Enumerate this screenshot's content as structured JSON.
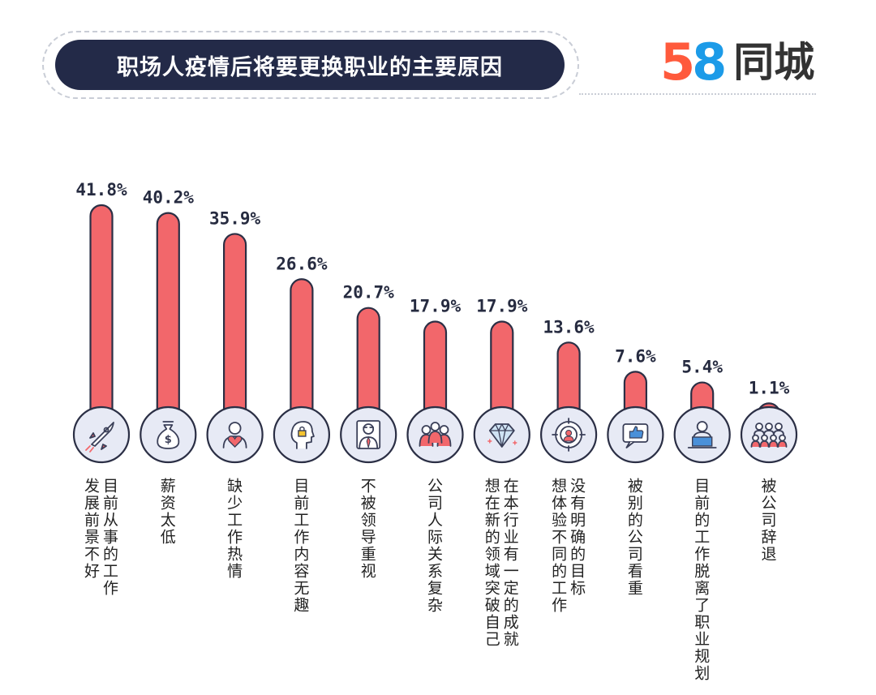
{
  "header": {
    "title": "职场人疫情后将要更换职业的主要原因",
    "logo_number": "58",
    "logo_text": "同城"
  },
  "colors": {
    "bar": "#f2676b",
    "bar_stroke": "#2b2f45",
    "icon_bg": "#e7eaf5",
    "icon_stroke": "#3a3f58",
    "title_bg": "#232a48"
  },
  "chart_data": {
    "type": "bar",
    "title": "职场人疫情后将要更换职业的主要原因",
    "unit": "%",
    "ylim": [
      0,
      45
    ],
    "grid": false,
    "categories": [
      "目前从事的工作发展前景不好",
      "薪资太低",
      "缺少工作热情",
      "目前工作内容无趣",
      "不被领导重视",
      "公司人际关系复杂",
      "想在本行业有一定的成就在新的领域突破自己",
      "没有明确的目标想体验不同的工作",
      "被别的公司看重",
      "目前的工作脱离了职业规划",
      "被公司辞退"
    ],
    "label_columns": [
      [
        "目前从事的工作",
        "发展前景不好"
      ],
      [
        "薪资太低"
      ],
      [
        "缺少工作热情"
      ],
      [
        "目前工作内容无趣"
      ],
      [
        "不被领导重视"
      ],
      [
        "公司人际关系复杂"
      ],
      [
        "在本行业有一定的成就",
        "想在新的领域突破自己"
      ],
      [
        "没有明确的目标",
        "想体验不同的工作"
      ],
      [
        "被别的公司看重"
      ],
      [
        "目前的工作脱离了职业规划"
      ],
      [
        "被公司辞退"
      ]
    ],
    "values": [
      41.8,
      40.2,
      35.9,
      26.6,
      20.7,
      17.9,
      17.9,
      13.6,
      7.6,
      5.4,
      1.1
    ],
    "value_labels": [
      "41.8%",
      "40.2%",
      "35.9%",
      "26.6%",
      "20.7%",
      "17.9%",
      "17.9%",
      "13.6%",
      "7.6%",
      "5.4%",
      "1.1%"
    ],
    "icons": [
      "rocket-icon",
      "money-bag-icon",
      "person-heart-icon",
      "head-lock-icon",
      "businessman-icon",
      "people-group-icon",
      "diamond-icon",
      "target-person-icon",
      "thumbs-up-icon",
      "person-laptop-icon",
      "team-icon"
    ]
  }
}
